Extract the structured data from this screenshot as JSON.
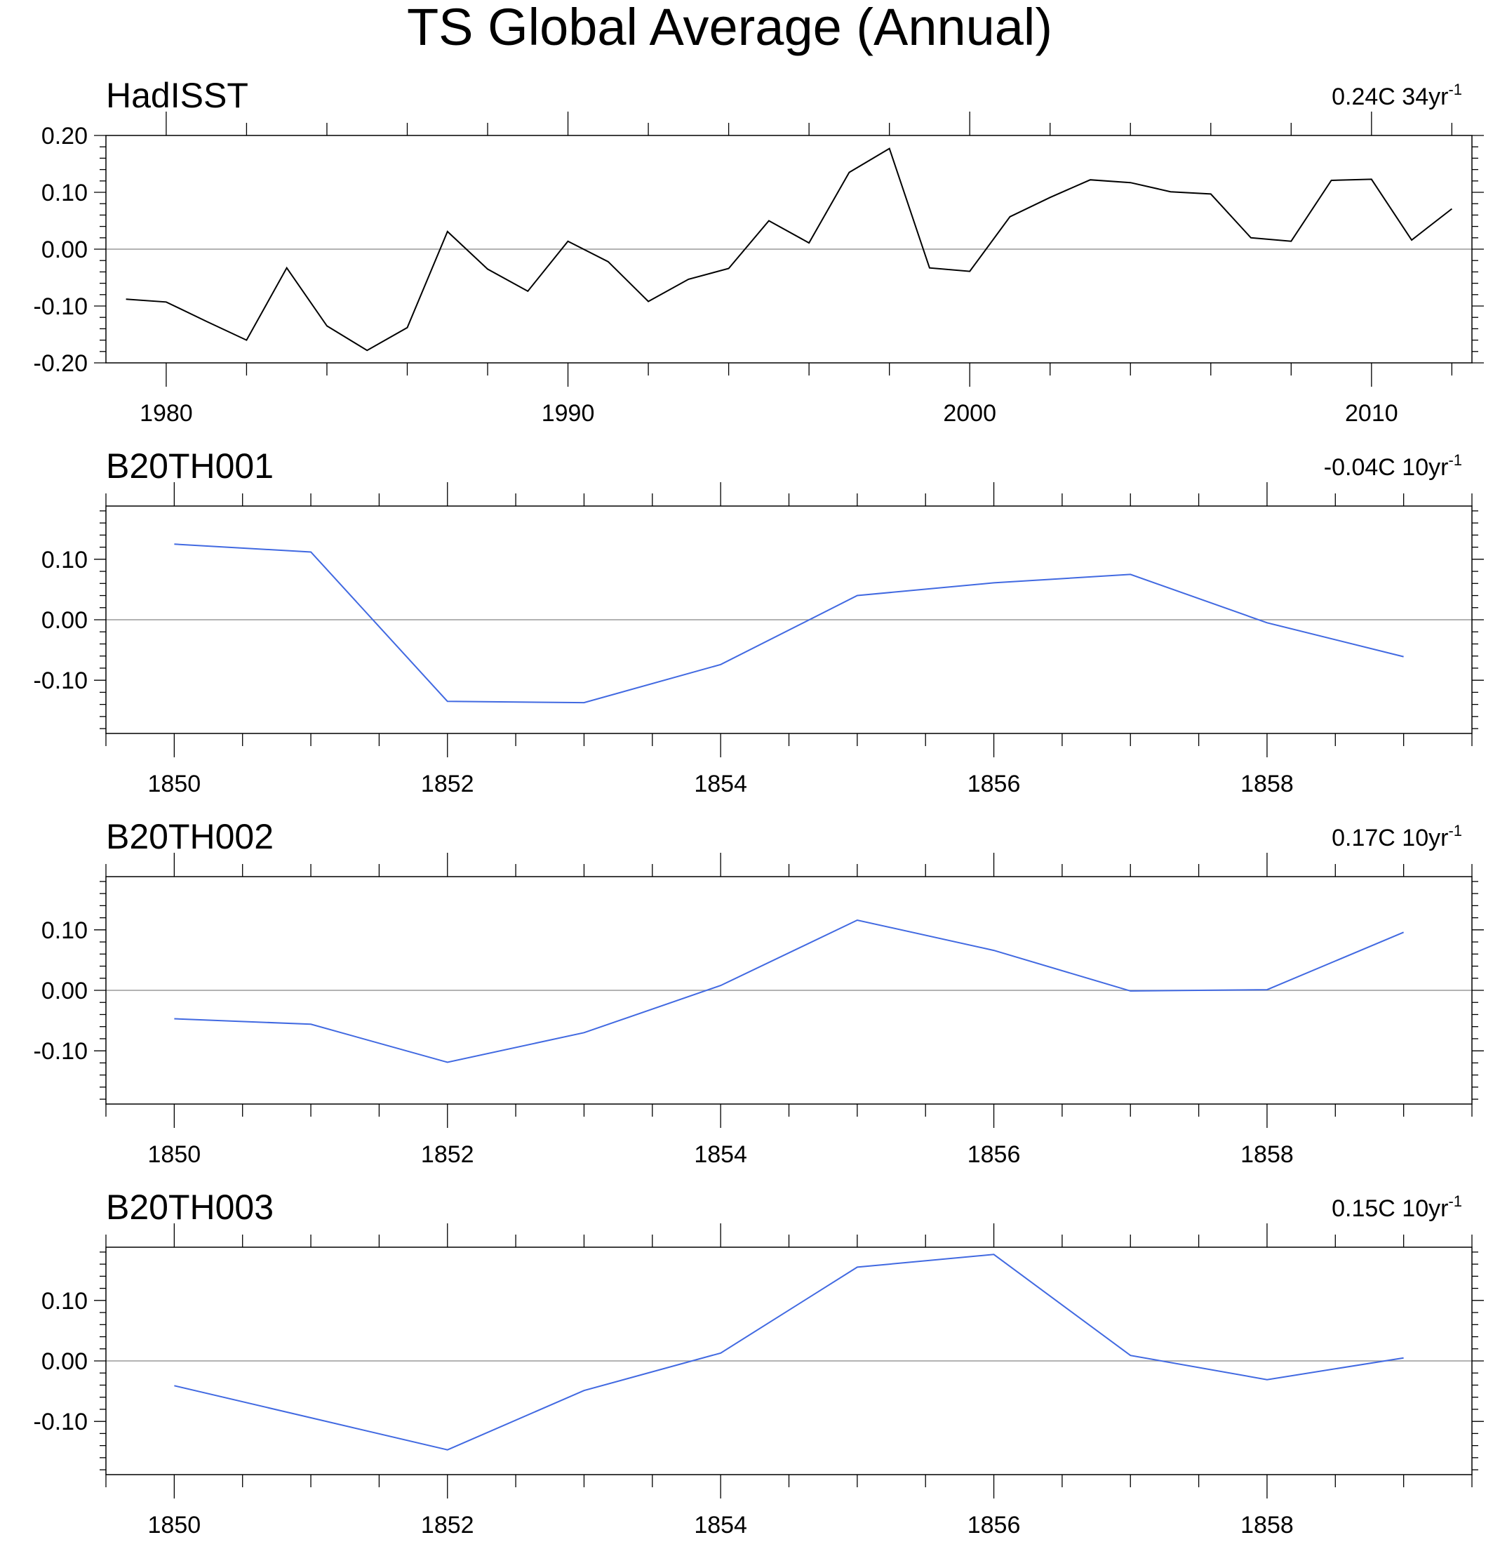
{
  "figure": {
    "title": "TS Global Average (Annual)"
  },
  "colors": {
    "observed": "#000000",
    "model": "#4169e1",
    "zero_line": "#9a9a9a"
  },
  "chart_data": [
    {
      "type": "line",
      "title": "HadISST",
      "trend": {
        "value": "0.24C 34yr",
        "exponent": "-1"
      },
      "xlabel": "",
      "ylabel": "",
      "xlim": [
        1978.5,
        2012.5
      ],
      "ylim": [
        -0.2,
        0.2
      ],
      "x_ticks_major": [
        1980,
        1990,
        2000,
        2010
      ],
      "x_tick_labels": [
        "1980",
        "1990",
        "2000",
        "2010"
      ],
      "x_minor_step": 2,
      "y_ticks_major": [
        -0.2,
        -0.1,
        0.0,
        0.1,
        0.2
      ],
      "y_tick_labels": [
        "-0.20",
        "-0.10",
        "0.00",
        "0.10",
        "0.20"
      ],
      "y_minor_step": 0.02,
      "series": [
        {
          "name": "HadISST",
          "color": "#000000",
          "x": [
            1979,
            1980,
            1981,
            1982,
            1983,
            1984,
            1985,
            1986,
            1987,
            1988,
            1989,
            1990,
            1991,
            1992,
            1993,
            1994,
            1995,
            1996,
            1997,
            1998,
            1999,
            2000,
            2001,
            2002,
            2003,
            2004,
            2005,
            2006,
            2007,
            2008,
            2009,
            2010,
            2011,
            2012
          ],
          "values": [
            -0.088,
            -0.093,
            -0.127,
            -0.16,
            -0.033,
            -0.135,
            -0.178,
            -0.138,
            0.031,
            -0.035,
            -0.074,
            0.014,
            -0.022,
            -0.092,
            -0.053,
            -0.034,
            0.05,
            0.011,
            0.135,
            0.177,
            -0.033,
            -0.039,
            0.057,
            0.091,
            0.122,
            0.117,
            0.101,
            0.097,
            0.02,
            0.014,
            0.121,
            0.123,
            0.016,
            0.071
          ]
        }
      ]
    },
    {
      "type": "line",
      "title": "B20TH001",
      "trend": {
        "value": "-0.04C 10yr",
        "exponent": "-1"
      },
      "xlabel": "",
      "ylabel": "",
      "xlim": [
        1849.5,
        1859.5
      ],
      "ylim": [
        -0.188,
        0.188
      ],
      "x_ticks_major": [
        1850,
        1852,
        1854,
        1856,
        1858
      ],
      "x_tick_labels": [
        "1850",
        "1852",
        "1854",
        "1856",
        "1858"
      ],
      "x_minor_step": 0.5,
      "y_ticks_major": [
        -0.1,
        0.0,
        0.1
      ],
      "y_tick_labels": [
        "-0.10",
        "0.00",
        "0.10"
      ],
      "y_minor_step": 0.02,
      "series": [
        {
          "name": "B20TH001",
          "color": "#4169e1",
          "x": [
            1850,
            1851,
            1852,
            1853,
            1854,
            1855,
            1856,
            1857,
            1858,
            1859
          ],
          "values": [
            0.125,
            0.112,
            -0.135,
            -0.137,
            -0.074,
            0.04,
            0.061,
            0.075,
            -0.005,
            -0.061
          ]
        }
      ]
    },
    {
      "type": "line",
      "title": "B20TH002",
      "trend": {
        "value": "0.17C 10yr",
        "exponent": "-1"
      },
      "xlabel": "",
      "ylabel": "",
      "xlim": [
        1849.5,
        1859.5
      ],
      "ylim": [
        -0.188,
        0.188
      ],
      "x_ticks_major": [
        1850,
        1852,
        1854,
        1856,
        1858
      ],
      "x_tick_labels": [
        "1850",
        "1852",
        "1854",
        "1856",
        "1858"
      ],
      "x_minor_step": 0.5,
      "y_ticks_major": [
        -0.1,
        0.0,
        0.1
      ],
      "y_tick_labels": [
        "-0.10",
        "0.00",
        "0.10"
      ],
      "y_minor_step": 0.02,
      "series": [
        {
          "name": "B20TH002",
          "color": "#4169e1",
          "x": [
            1850,
            1851,
            1852,
            1853,
            1854,
            1855,
            1856,
            1857,
            1858,
            1859
          ],
          "values": [
            -0.047,
            -0.056,
            -0.119,
            -0.07,
            0.008,
            0.116,
            0.066,
            -0.001,
            0.001,
            0.096
          ]
        }
      ]
    },
    {
      "type": "line",
      "title": "B20TH003",
      "trend": {
        "value": "0.15C 10yr",
        "exponent": "-1"
      },
      "xlabel": "",
      "ylabel": "",
      "xlim": [
        1849.5,
        1859.5
      ],
      "ylim": [
        -0.188,
        0.188
      ],
      "x_ticks_major": [
        1850,
        1852,
        1854,
        1856,
        1858
      ],
      "x_tick_labels": [
        "1850",
        "1852",
        "1854",
        "1856",
        "1858"
      ],
      "x_minor_step": 0.5,
      "y_ticks_major": [
        -0.1,
        0.0,
        0.1
      ],
      "y_tick_labels": [
        "-0.10",
        "0.00",
        "0.10"
      ],
      "y_minor_step": 0.02,
      "series": [
        {
          "name": "B20TH003",
          "color": "#4169e1",
          "x": [
            1850,
            1851,
            1852,
            1853,
            1854,
            1855,
            1856,
            1857,
            1858,
            1859
          ],
          "values": [
            -0.041,
            -0.094,
            -0.147,
            -0.049,
            0.013,
            0.155,
            0.176,
            0.009,
            -0.031,
            0.005
          ]
        }
      ]
    }
  ]
}
